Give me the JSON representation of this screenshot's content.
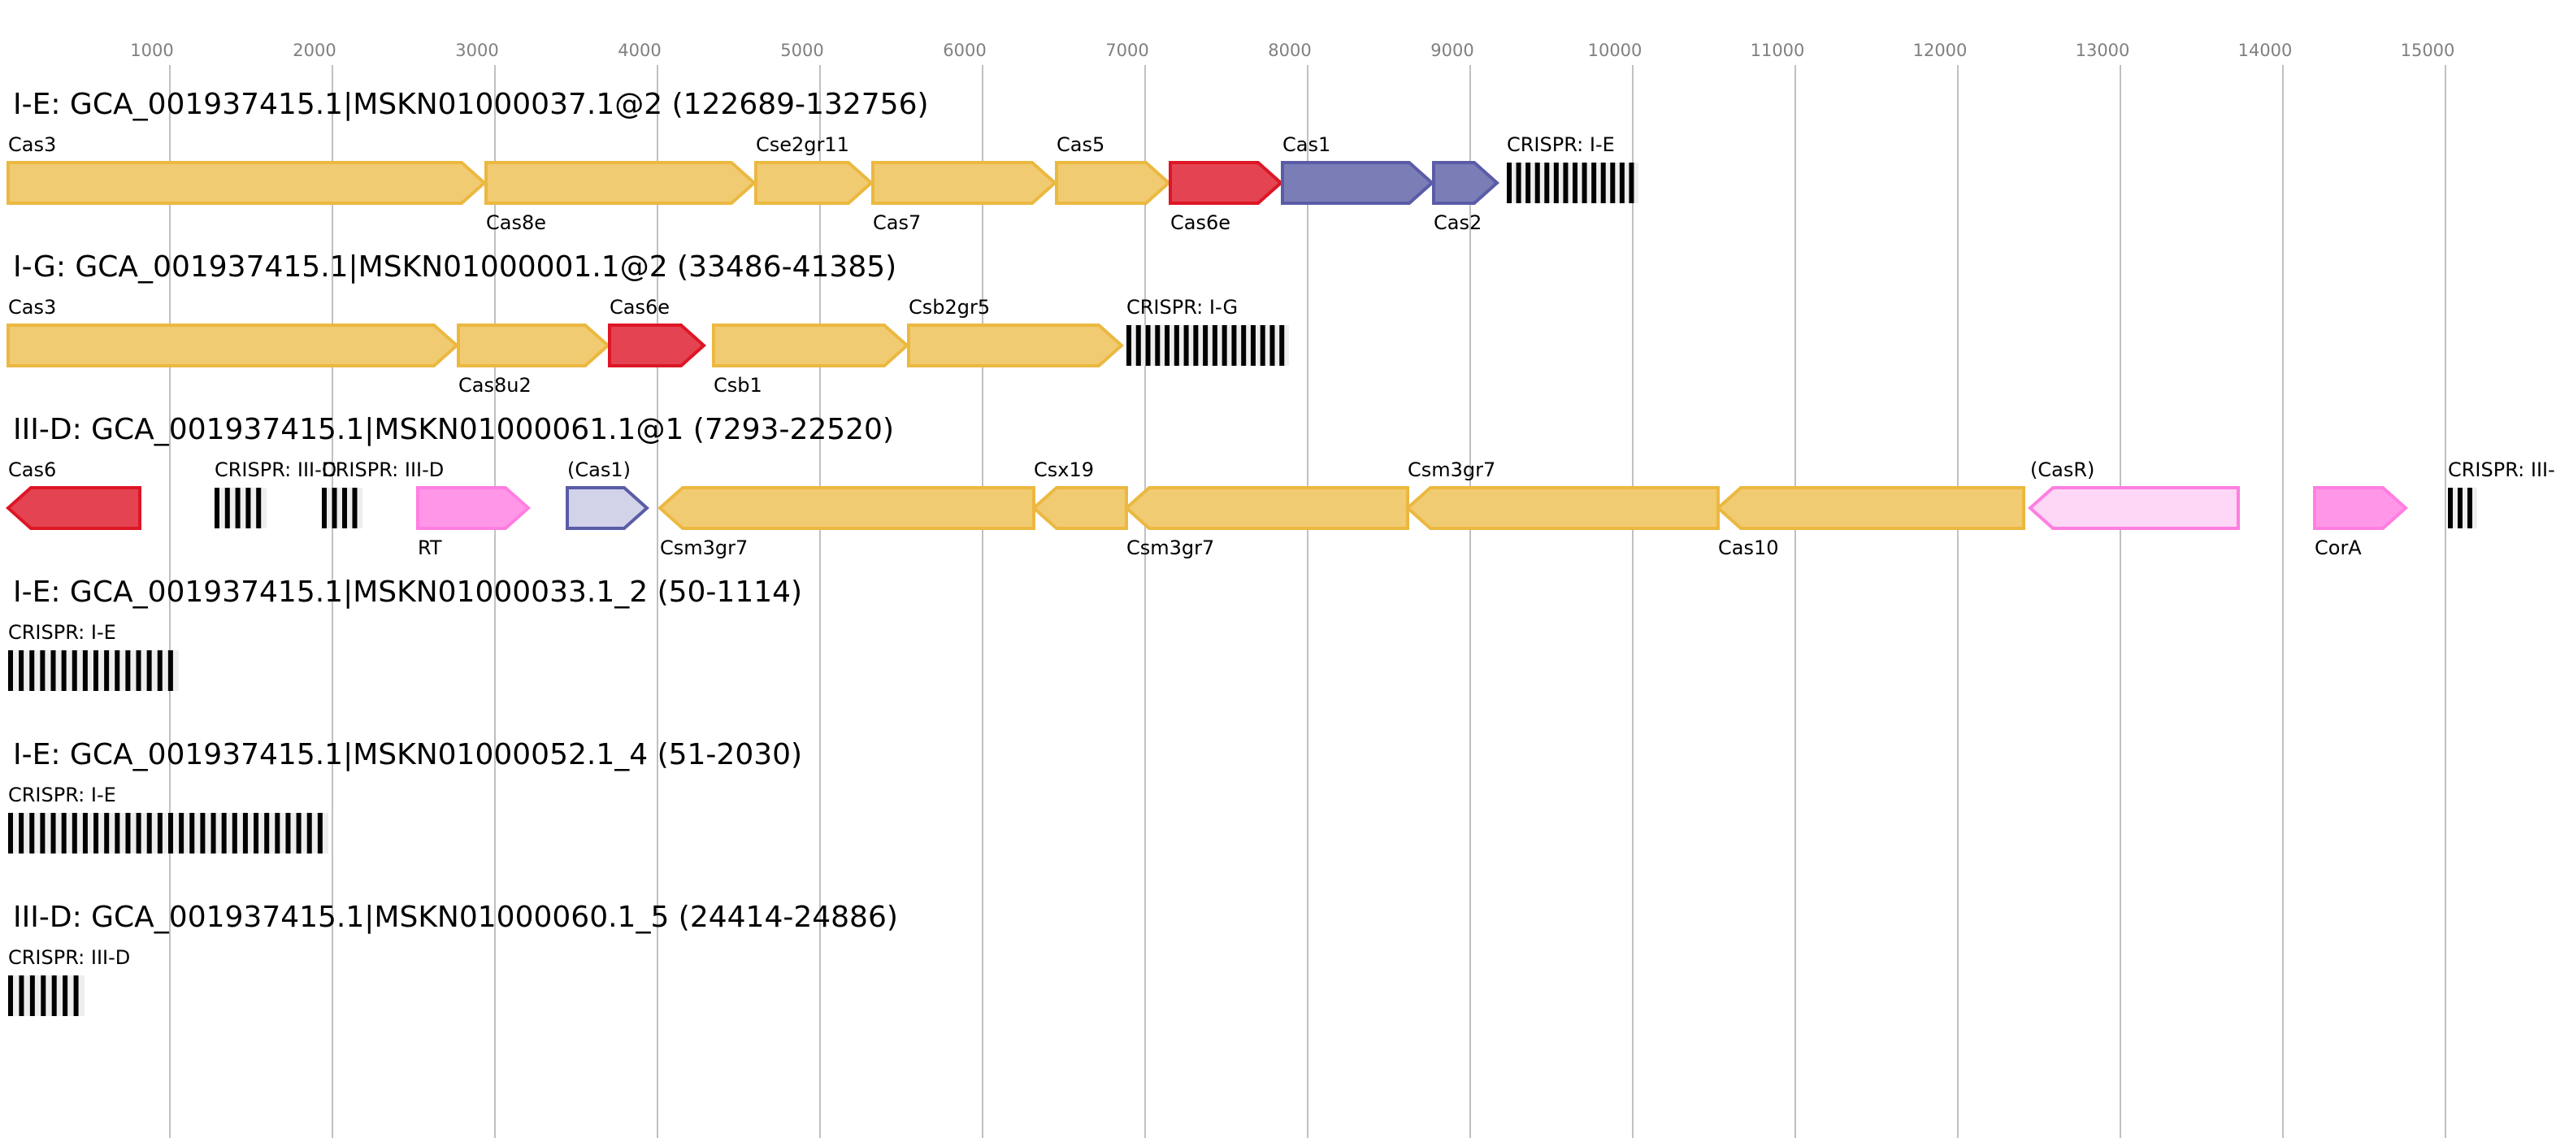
{
  "axis": {
    "ticks": [
      1000,
      2000,
      3000,
      4000,
      5000,
      6000,
      7000,
      8000,
      9000,
      10000,
      11000,
      12000,
      13000,
      14000,
      15000
    ]
  },
  "colors": {
    "yellow": {
      "fill": "#f1cb72",
      "stroke": "#ebb840"
    },
    "red": {
      "fill": "#e44452",
      "stroke": "#dd1626"
    },
    "blue": {
      "fill": "#7b7db6",
      "stroke": "#5a5ca8"
    },
    "lavender": {
      "fill": "#d2d2e8",
      "stroke": "#5a5ca8"
    },
    "pink": {
      "fill": "#ff96e8",
      "stroke": "#ff7ee0"
    },
    "lightpink": {
      "fill": "#fed6f6",
      "stroke": "#ff7ee0"
    }
  },
  "rows": [
    {
      "title": "I-E: GCA_001937415.1|MSKN01000037.1@2 (122689-132756)",
      "features": [
        {
          "label": "Cas3",
          "start": 5,
          "end": 2935,
          "strand": 1,
          "color": "yellow",
          "pos": "above"
        },
        {
          "label": "Cas8e",
          "start": 2945,
          "end": 4595,
          "strand": 1,
          "color": "yellow",
          "pos": "below"
        },
        {
          "label": "Cse2gr11",
          "start": 4605,
          "end": 5315,
          "strand": 1,
          "color": "yellow",
          "pos": "above"
        },
        {
          "label": "Cas7",
          "start": 5325,
          "end": 6445,
          "strand": 1,
          "color": "yellow",
          "pos": "below"
        },
        {
          "label": "Cas5",
          "start": 6455,
          "end": 7145,
          "strand": 1,
          "color": "yellow",
          "pos": "above"
        },
        {
          "label": "Cas6e",
          "start": 7155,
          "end": 7835,
          "strand": 1,
          "color": "red",
          "pos": "below"
        },
        {
          "label": "Cas1",
          "start": 7845,
          "end": 8765,
          "strand": 1,
          "color": "blue",
          "pos": "above"
        },
        {
          "label": "Cas2",
          "start": 8775,
          "end": 9165,
          "strand": 1,
          "color": "blue",
          "pos": "below"
        },
        {
          "label": "CRISPR: I-E",
          "start": 9225,
          "end": 10035,
          "crispr": 14,
          "pos": "above"
        }
      ]
    },
    {
      "title": "I-G: GCA_001937415.1|MSKN01000001.1@2 (33486-41385)",
      "features": [
        {
          "label": "Cas3",
          "start": 5,
          "end": 2765,
          "strand": 1,
          "color": "yellow",
          "pos": "above"
        },
        {
          "label": "Cas8u2",
          "start": 2775,
          "end": 3695,
          "strand": 1,
          "color": "yellow",
          "pos": "below"
        },
        {
          "label": "Cas6e",
          "start": 3705,
          "end": 4285,
          "strand": 1,
          "color": "red",
          "pos": "above"
        },
        {
          "label": "Csb1",
          "start": 4345,
          "end": 5535,
          "strand": 1,
          "color": "yellow",
          "pos": "below"
        },
        {
          "label": "Csb2gr5",
          "start": 5545,
          "end": 6855,
          "strand": 1,
          "color": "yellow",
          "pos": "above"
        },
        {
          "label": "CRISPR: I-G",
          "start": 6885,
          "end": 7885,
          "crispr": 17,
          "pos": "above"
        }
      ]
    },
    {
      "title": "III-D: GCA_001937415.1|MSKN01000061.1@1 (7293-22520)",
      "features": [
        {
          "label": "Cas6",
          "start": 5,
          "end": 815,
          "strand": -1,
          "color": "red",
          "pos": "above"
        },
        {
          "label": "CRISPR: III-D",
          "start": 1275,
          "end": 1595,
          "crispr": 5,
          "pos": "above"
        },
        {
          "label": "CRISPR: III-D",
          "start": 1935,
          "end": 2185,
          "crispr": 4,
          "pos": "above"
        },
        {
          "label": "RT",
          "start": 2525,
          "end": 3205,
          "strand": 1,
          "color": "pink",
          "pos": "below"
        },
        {
          "label": "(Cas1)",
          "start": 3445,
          "end": 3935,
          "strand": 1,
          "color": "lavender",
          "pos": "above"
        },
        {
          "label": "Csm3gr7",
          "start": 4015,
          "end": 6315,
          "strand": -1,
          "color": "yellow",
          "pos": "below"
        },
        {
          "label": "Csx19",
          "start": 6315,
          "end": 6885,
          "strand": -1,
          "color": "yellow",
          "pos": "above"
        },
        {
          "label": "Csm3gr7",
          "start": 6885,
          "end": 8615,
          "strand": -1,
          "color": "yellow",
          "pos": "below"
        },
        {
          "label": "Csm3gr7",
          "start": 8615,
          "end": 10525,
          "strand": -1,
          "color": "yellow",
          "pos": "above"
        },
        {
          "label": "Cas10",
          "start": 10525,
          "end": 12405,
          "strand": -1,
          "color": "yellow",
          "pos": "below"
        },
        {
          "label": "(CasR)",
          "start": 12445,
          "end": 13725,
          "strand": -1,
          "color": "lightpink",
          "pos": "above"
        },
        {
          "label": "CorA",
          "start": 14195,
          "end": 14755,
          "strand": 1,
          "color": "pink",
          "pos": "below"
        },
        {
          "label": "CRISPR: III-D",
          "start": 15015,
          "end": 15195,
          "crispr": 3,
          "pos": "above"
        }
      ]
    },
    {
      "title": "I-E: GCA_001937415.1|MSKN01000033.1_2 (50-1114)",
      "features": [
        {
          "label": "CRISPR: I-E",
          "start": 5,
          "end": 1055,
          "crispr": 16,
          "pos": "above"
        }
      ]
    },
    {
      "title": "I-E: GCA_001937415.1|MSKN01000052.1_4 (51-2030)",
      "features": [
        {
          "label": "CRISPR: I-E",
          "start": 5,
          "end": 1975,
          "crispr": 30,
          "pos": "above"
        }
      ]
    },
    {
      "title": "III-D: GCA_001937415.1|MSKN01000060.1_5 (24414-24886)",
      "features": [
        {
          "label": "CRISPR: III-D",
          "start": 5,
          "end": 475,
          "crispr": 7,
          "pos": "above"
        }
      ]
    }
  ]
}
